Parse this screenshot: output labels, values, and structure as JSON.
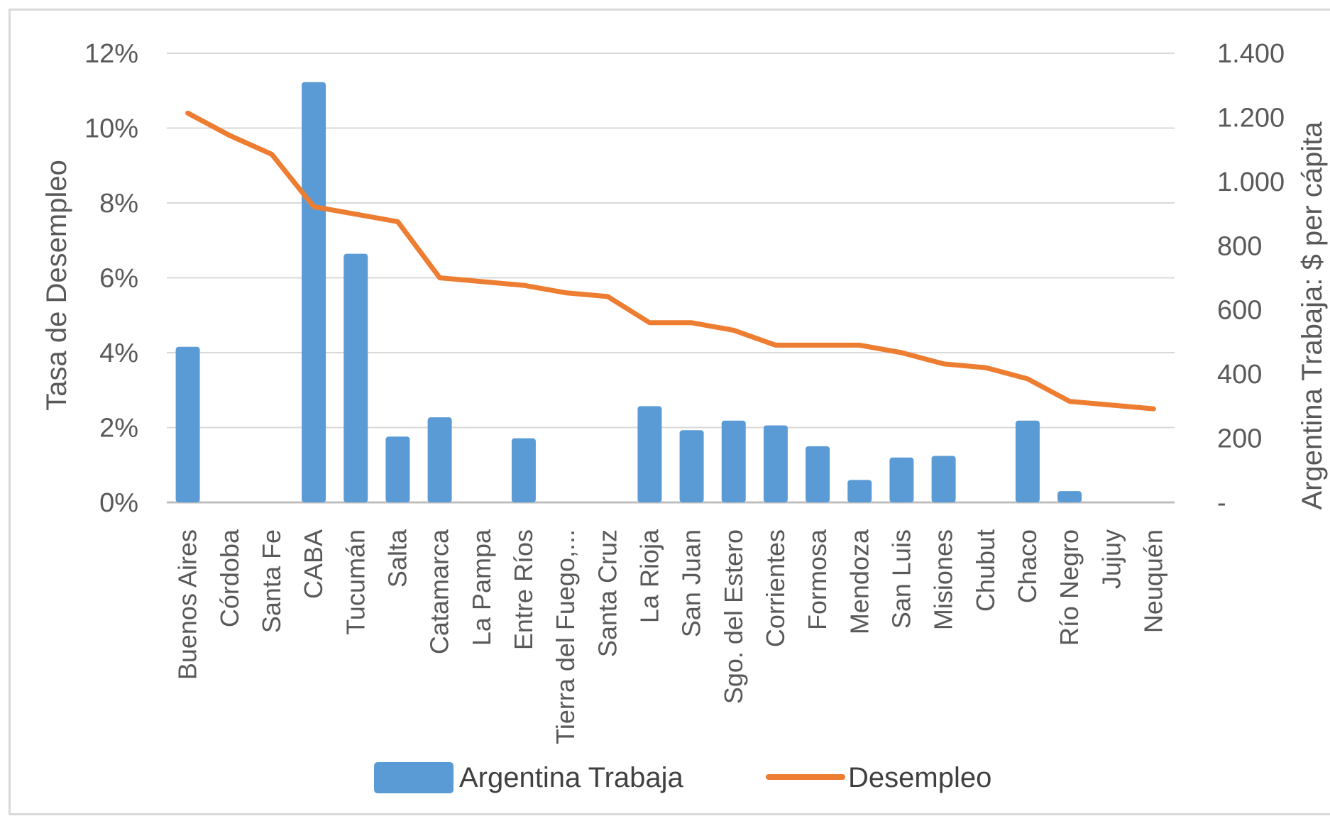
{
  "chart_data": {
    "type": "bar+line",
    "title": "",
    "categories": [
      "Buenos Aires",
      "Córdoba",
      "Santa Fe",
      "CABA",
      "Tucumán",
      "Salta",
      "Catamarca",
      "La Pampa",
      "Entre Ríos",
      "Tierra del Fuego,...",
      "Santa Cruz",
      "La Rioja",
      "San Juan",
      "Sgo. del Estero",
      "Corrientes",
      "Formosa",
      "Mendoza",
      "San Luis",
      "Misiones",
      "Chubut",
      "Chaco",
      "Río Negro",
      "Jujuy",
      "Neuquén"
    ],
    "series": [
      {
        "name": "Argentina Trabaja",
        "type": "bar",
        "axis": "right",
        "color": "#5b9bd5",
        "values": [
          485,
          0,
          0,
          1310,
          775,
          205,
          265,
          0,
          200,
          0,
          0,
          300,
          225,
          255,
          240,
          175,
          70,
          140,
          145,
          0,
          255,
          35,
          0,
          0
        ]
      },
      {
        "name": "Desempleo",
        "type": "line",
        "axis": "left",
        "color": "#ed7d31",
        "values": [
          10.4,
          9.8,
          9.3,
          7.9,
          7.7,
          7.5,
          6.0,
          5.9,
          5.8,
          5.6,
          5.5,
          4.8,
          4.8,
          4.6,
          4.2,
          4.2,
          4.2,
          4.0,
          3.7,
          3.6,
          3.3,
          2.7,
          2.6,
          2.5
        ]
      }
    ],
    "left_axis": {
      "title": "Tasa de Desempleo",
      "min": 0,
      "max": 12,
      "step": 2,
      "tick_labels": [
        "0%",
        "2%",
        "4%",
        "6%",
        "8%",
        "10%",
        "12%"
      ]
    },
    "right_axis": {
      "title": "Argentina Trabaja: $ per cápita",
      "min": 0,
      "max": 1400,
      "step": 200,
      "tick_labels": [
        "-",
        "200",
        "400",
        "600",
        "800",
        "1.000",
        "1.200",
        "1.400"
      ]
    },
    "grid": true,
    "legend": {
      "position": "bottom",
      "items": [
        "Argentina Trabaja",
        "Desempleo"
      ]
    }
  }
}
